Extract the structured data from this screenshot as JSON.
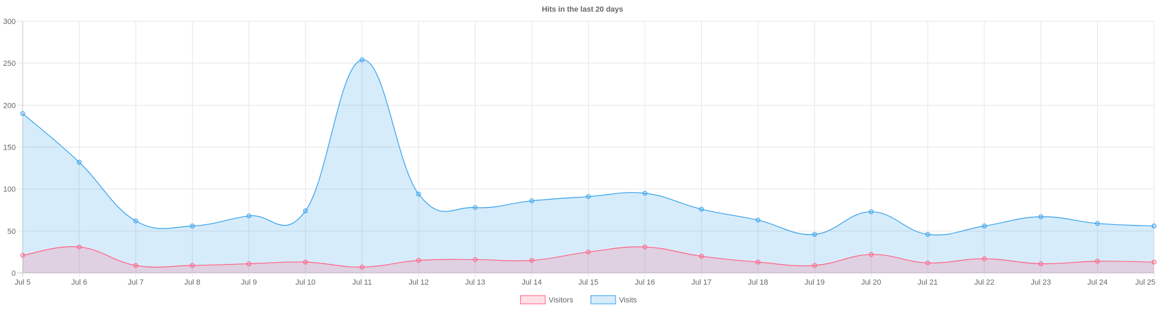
{
  "chart_data": {
    "type": "line",
    "title": "Hits in the last 20 days",
    "categories": [
      "Jul 5",
      "Jul 6",
      "Jul 7",
      "Jul 8",
      "Jul 9",
      "Jul 10",
      "Jul 11",
      "Jul 12",
      "Jul 13",
      "Jul 14",
      "Jul 15",
      "Jul 16",
      "Jul 17",
      "Jul 18",
      "Jul 19",
      "Jul 20",
      "Jul 21",
      "Jul 22",
      "Jul 23",
      "Jul 24",
      "Jul 25"
    ],
    "y_ticks": [
      0,
      50,
      100,
      150,
      200,
      250,
      300
    ],
    "ylim": [
      0,
      300
    ],
    "grid": true,
    "legend_position": "bottom",
    "series": [
      {
        "name": "Visitors",
        "color": "#ff6384",
        "fill": "rgba(255,99,132,0.2)",
        "values": [
          21,
          31,
          9,
          9,
          11,
          13,
          7,
          15,
          16,
          15,
          25,
          31,
          20,
          13,
          9,
          22,
          12,
          17,
          11,
          14,
          13
        ]
      },
      {
        "name": "Visits",
        "color": "#36a2eb",
        "fill": "rgba(54,162,235,0.2)",
        "values": [
          190,
          132,
          62,
          56,
          68,
          74,
          254,
          94,
          78,
          86,
          91,
          95,
          76,
          63,
          46,
          73,
          46,
          56,
          67,
          59,
          56
        ]
      }
    ]
  }
}
